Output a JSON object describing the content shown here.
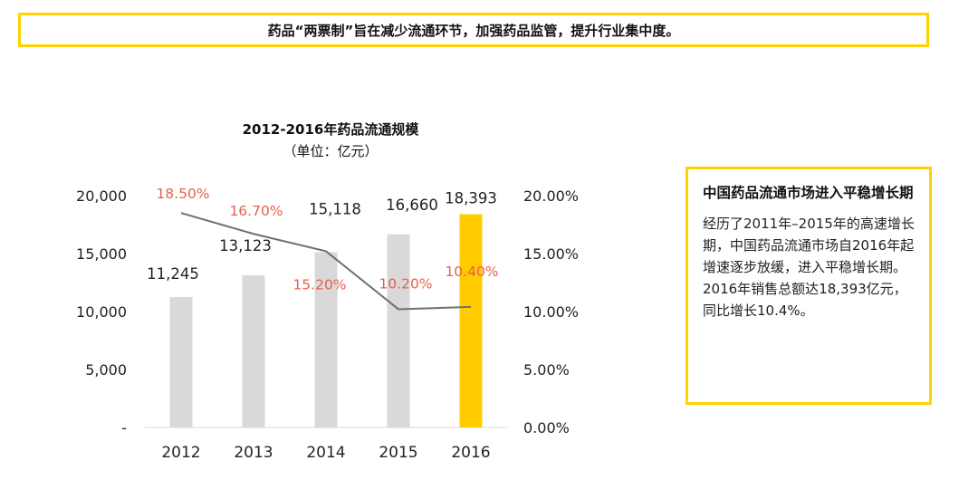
{
  "headline": "药品“两票制”旨在减少流通环节，加强药品监管，提升行业集中度。",
  "chart_data": {
    "type": "bar",
    "title": "2012-2016年药品流通规模",
    "subtitle": "（单位：亿元）",
    "categories": [
      "2012",
      "2013",
      "2014",
      "2015",
      "2016"
    ],
    "series": [
      {
        "values": [
          11245,
          13123,
          15118,
          16660,
          18393
        ],
        "labels": [
          "11,245",
          "13,123",
          "15,118",
          "16,660",
          "18,393"
        ],
        "axis": "left",
        "colors": [
          "#D9D9D9",
          "#D9D9D9",
          "#D9D9D9",
          "#D9D9D9",
          "#FFCC00"
        ]
      },
      {
        "type": "line",
        "values": [
          18.5,
          16.7,
          15.2,
          10.2,
          10.4
        ],
        "labels": [
          "18.50%",
          "16.70%",
          "15.20%",
          "10.20%",
          "10.40%"
        ],
        "axis": "right",
        "color": "#707070",
        "label_color": "#E8604C"
      }
    ],
    "y_left": {
      "ylim": [
        0,
        20000
      ],
      "ticks": [
        0,
        5000,
        10000,
        15000,
        20000
      ],
      "tick_labels": [
        "-",
        "5,000",
        "10,000",
        "15,000",
        "20,000"
      ]
    },
    "y_right": {
      "ylim": [
        0,
        20
      ],
      "ticks": [
        0,
        5,
        10,
        15,
        20
      ],
      "tick_labels": [
        "0.00%",
        "5.00%",
        "10.00%",
        "15.00%",
        "20.00%"
      ]
    },
    "grid": false,
    "legend": "none"
  },
  "callout": {
    "title": "中国药品流通市场进入平稳增长期",
    "body": "经历了2011年–2015年的高速增长期，中国药品流通市场自2016年起增速逐步放缓，进入平稳增长期。2016年销售总额达18,393亿元，同比增长10.4%。"
  }
}
